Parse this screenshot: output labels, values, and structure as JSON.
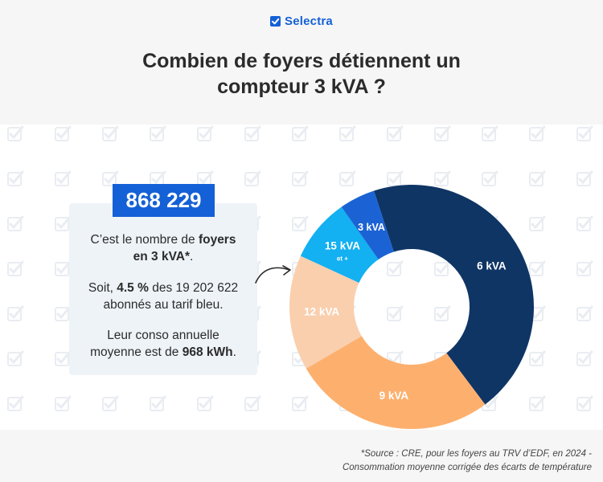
{
  "brand": {
    "name": "Selectra"
  },
  "title_lines": [
    "Combien de foyers détiennent un",
    "compteur 3 kVA ?"
  ],
  "stat": {
    "value": "868 229",
    "line1_pre": "C’est le nombre de ",
    "line1_bold": "foyers",
    "line2_bold": "en 3 kVA*",
    "line2_post": ".",
    "line3_pre": "Soit, ",
    "line3_bold": "4.5 %",
    "line3_post": " des 19 202 622",
    "line4": "abonnés au tarif bleu.",
    "line5": "Leur conso annuelle",
    "line6_pre": "moyenne est de ",
    "line6_bold": "968 kWh",
    "line6_post": "."
  },
  "source_lines": [
    "*Source : CRE, pour les foyers au TRV d’EDF, en 2024 -",
    "Consommation moyenne corrigée des écarts de température"
  ],
  "colors": {
    "brand": "#1460d6",
    "header_bg": "#f6f6f6",
    "card_bg": "#eef3f8",
    "pattern": "#e9edf2"
  },
  "icons": {
    "brand": "checkbox-icon",
    "pattern": "checkbox-icon",
    "callout": "curved-arrow-icon"
  },
  "chart_data": {
    "type": "pie",
    "donut": true,
    "title": "",
    "categories": [
      "6 kVA",
      "9 kVA",
      "12 kVA",
      "15 kVA",
      "3 kVA"
    ],
    "slice_labels": [
      "6 kVA",
      "9 kVA",
      "12 kVA",
      "15 kVA",
      "3 kVA"
    ],
    "slice_sublabels": [
      "",
      "",
      "",
      "et +",
      ""
    ],
    "values": [
      42.5,
      25.5,
      14.5,
      8.0,
      4.5
    ],
    "colors": [
      "#0f3565",
      "#fdb06e",
      "#f9cfae",
      "#13b0f2",
      "#1b63d4"
    ],
    "legend": "none"
  }
}
